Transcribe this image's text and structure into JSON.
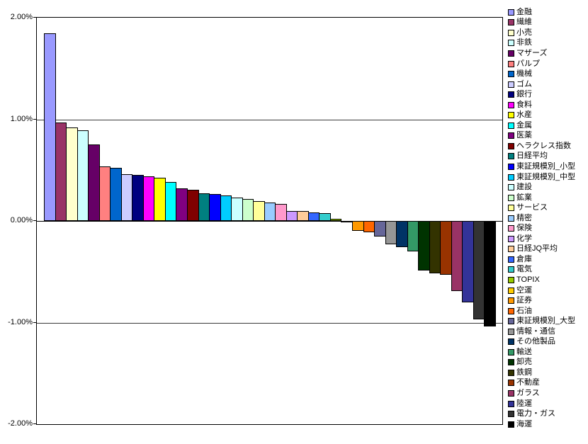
{
  "chart_data": {
    "type": "bar",
    "title": "",
    "xlabel": "",
    "ylabel": "",
    "value_unit": "%",
    "ylim": [
      -2,
      2
    ],
    "grid": "horizontal-major",
    "gridline_values": [
      1,
      0,
      -1
    ],
    "legend_position": "right",
    "yticks": [
      {
        "label": "2.00%",
        "value": 2
      },
      {
        "label": "1.00%",
        "value": 1
      },
      {
        "label": "0.00%",
        "value": 0
      },
      {
        "label": "-1.00%",
        "value": -1
      },
      {
        "label": "-2.00%",
        "value": -2
      }
    ],
    "series": [
      {
        "name": "金融",
        "value": 1.85,
        "color": "#9999FF"
      },
      {
        "name": "繊維",
        "value": 0.97,
        "color": "#993366"
      },
      {
        "name": "小売",
        "value": 0.92,
        "color": "#FFFFCC"
      },
      {
        "name": "非鉄",
        "value": 0.89,
        "color": "#CCFFFF"
      },
      {
        "name": "マザーズ",
        "value": 0.75,
        "color": "#660066"
      },
      {
        "name": "パルプ",
        "value": 0.54,
        "color": "#FF8080"
      },
      {
        "name": "機械",
        "value": 0.52,
        "color": "#0066CC"
      },
      {
        "name": "ゴム",
        "value": 0.46,
        "color": "#CCCCFF"
      },
      {
        "name": "銀行",
        "value": 0.455,
        "color": "#000080"
      },
      {
        "name": "食料",
        "value": 0.44,
        "color": "#FF00FF"
      },
      {
        "name": "水産",
        "value": 0.425,
        "color": "#FFFF00"
      },
      {
        "name": "金属",
        "value": 0.38,
        "color": "#00FFFF"
      },
      {
        "name": "医薬",
        "value": 0.32,
        "color": "#800080"
      },
      {
        "name": "ヘラクレス指数",
        "value": 0.31,
        "color": "#800000"
      },
      {
        "name": "日経平均",
        "value": 0.27,
        "color": "#008080"
      },
      {
        "name": "東証規模別_小型",
        "value": 0.265,
        "color": "#0000FF"
      },
      {
        "name": "東証規模別_中型",
        "value": 0.25,
        "color": "#00CCFF"
      },
      {
        "name": "建設",
        "value": 0.23,
        "color": "#CCFFFF"
      },
      {
        "name": "鉱業",
        "value": 0.215,
        "color": "#CCFFCC"
      },
      {
        "name": "サービス",
        "value": 0.195,
        "color": "#FFFF99"
      },
      {
        "name": "精密",
        "value": 0.18,
        "color": "#99CCFF"
      },
      {
        "name": "保険",
        "value": 0.17,
        "color": "#FF99CC"
      },
      {
        "name": "化学",
        "value": 0.1,
        "color": "#CC99FF"
      },
      {
        "name": "日経JQ平均",
        "value": 0.095,
        "color": "#FFCC99"
      },
      {
        "name": "倉庫",
        "value": 0.085,
        "color": "#3366FF"
      },
      {
        "name": "電気",
        "value": 0.075,
        "color": "#33CCCC"
      },
      {
        "name": "TOPIX",
        "value": 0.02,
        "color": "#99CC00"
      },
      {
        "name": "空運",
        "value": -0.015,
        "color": "#FFCC00"
      },
      {
        "name": "証券",
        "value": -0.1,
        "color": "#FF9900"
      },
      {
        "name": "石油",
        "value": -0.11,
        "color": "#FF6600"
      },
      {
        "name": "東証規模別_大型",
        "value": -0.15,
        "color": "#666699"
      },
      {
        "name": "情報・通信",
        "value": -0.23,
        "color": "#969696"
      },
      {
        "name": "その他製品",
        "value": -0.26,
        "color": "#003366"
      },
      {
        "name": "輸送",
        "value": -0.3,
        "color": "#339966"
      },
      {
        "name": "卸売",
        "value": -0.49,
        "color": "#003300"
      },
      {
        "name": "鉄鋼",
        "value": -0.515,
        "color": "#333300"
      },
      {
        "name": "不動産",
        "value": -0.53,
        "color": "#993300"
      },
      {
        "name": "ガラス",
        "value": -0.69,
        "color": "#993366"
      },
      {
        "name": "陸運",
        "value": -0.8,
        "color": "#333399"
      },
      {
        "name": "電力・ガス",
        "value": -0.97,
        "color": "#333333"
      },
      {
        "name": "海運",
        "value": -1.04,
        "color": "#000000"
      }
    ]
  }
}
